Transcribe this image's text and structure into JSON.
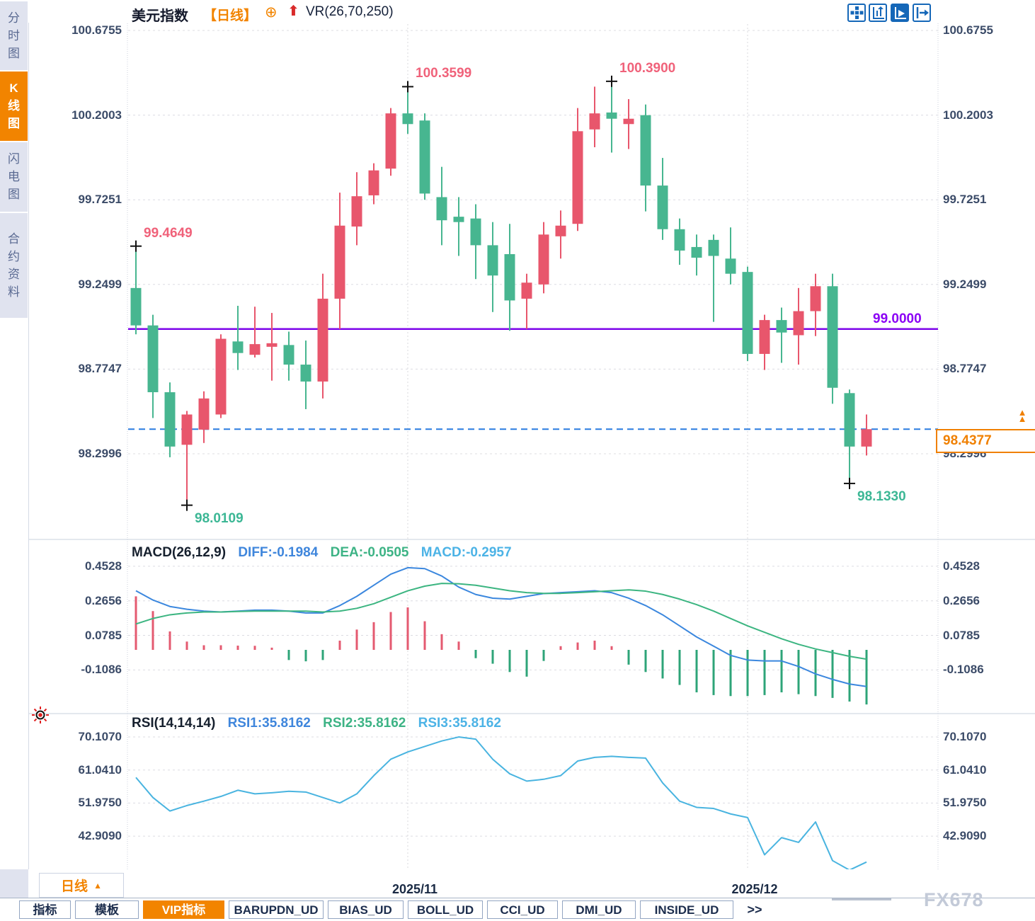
{
  "header": {
    "title": "美元指数",
    "period_tag": "【日线】",
    "plus_icon": "⊕",
    "up_arrow": "⬆",
    "overlay_indicator": "VR(26,70,250)",
    "accent_orange": "#f28400",
    "toolbar_icons": [
      "crosshair-pan-icon",
      "fit-axis-icon",
      "auto-scroll-icon",
      "exit-right-icon"
    ]
  },
  "sidebar": {
    "tabs": [
      {
        "label": "分时图",
        "active": false
      },
      {
        "label": "K线图",
        "active": true
      },
      {
        "label": "闪电图",
        "active": false
      },
      {
        "label": "合约资料",
        "active": false
      }
    ]
  },
  "chart_data": {
    "type": "candlestick",
    "title": "美元指数",
    "period": "日线",
    "up_color": "#e8566c",
    "down_color": "#47b690",
    "y_axis": {
      "main_ticks": [
        "100.6755",
        "100.2003",
        "99.7251",
        "99.2499",
        "98.7747",
        "98.2996"
      ],
      "main_range": [
        97.88,
        100.73
      ]
    },
    "x_axis": {
      "month_markers": [
        {
          "label": "2025/11",
          "index": 16
        },
        {
          "label": "2025/12",
          "index": 36
        }
      ]
    },
    "candles": [
      [
        99.23,
        99.4649,
        98.97,
        99.02
      ],
      [
        99.02,
        99.08,
        98.5,
        98.645
      ],
      [
        98.645,
        98.7,
        98.28,
        98.34
      ],
      [
        98.35,
        98.54,
        98.0109,
        98.52
      ],
      [
        98.435,
        98.65,
        98.36,
        98.61
      ],
      [
        98.52,
        98.97,
        98.5,
        98.945
      ],
      [
        98.93,
        99.13,
        98.77,
        98.865
      ],
      [
        98.855,
        99.125,
        98.84,
        98.915
      ],
      [
        98.9,
        99.09,
        98.71,
        98.92
      ],
      [
        98.91,
        98.985,
        98.71,
        98.8
      ],
      [
        98.8,
        98.935,
        98.55,
        98.705
      ],
      [
        98.705,
        99.31,
        98.61,
        99.17
      ],
      [
        99.17,
        99.765,
        99.0,
        99.58
      ],
      [
        99.575,
        99.88,
        99.47,
        99.745
      ],
      [
        99.75,
        99.93,
        99.7,
        99.89
      ],
      [
        99.9,
        100.24,
        99.86,
        100.21
      ],
      [
        100.21,
        100.3599,
        100.095,
        100.15
      ],
      [
        100.17,
        100.21,
        99.725,
        99.76
      ],
      [
        99.74,
        99.91,
        99.47,
        99.61
      ],
      [
        99.63,
        99.74,
        99.41,
        99.6
      ],
      [
        99.62,
        99.7,
        99.28,
        99.47
      ],
      [
        99.47,
        99.6,
        99.095,
        99.3
      ],
      [
        99.42,
        99.59,
        98.99,
        99.16
      ],
      [
        99.17,
        99.31,
        99.0,
        99.26
      ],
      [
        99.25,
        99.6,
        99.2,
        99.53
      ],
      [
        99.52,
        99.665,
        99.395,
        99.58
      ],
      [
        99.59,
        100.24,
        99.55,
        100.11
      ],
      [
        100.12,
        100.36,
        100.02,
        100.21
      ],
      [
        100.215,
        100.39,
        99.99,
        100.18
      ],
      [
        100.15,
        100.29,
        100.01,
        100.18
      ],
      [
        100.2,
        100.26,
        99.66,
        99.805
      ],
      [
        99.805,
        99.96,
        99.5,
        99.56
      ],
      [
        99.56,
        99.62,
        99.36,
        99.44
      ],
      [
        99.46,
        99.53,
        99.3,
        99.4
      ],
      [
        99.5,
        99.53,
        99.04,
        99.41
      ],
      [
        99.395,
        99.57,
        99.25,
        99.31
      ],
      [
        99.32,
        99.35,
        98.82,
        98.86
      ],
      [
        98.86,
        99.08,
        98.77,
        99.05
      ],
      [
        99.05,
        99.12,
        98.81,
        98.98
      ],
      [
        98.965,
        99.23,
        98.8,
        99.1
      ],
      [
        99.1,
        99.31,
        98.96,
        99.24
      ],
      [
        99.24,
        99.31,
        98.58,
        98.67
      ],
      [
        98.64,
        98.66,
        98.133,
        98.34
      ],
      [
        98.34,
        98.52,
        98.29,
        98.4377
      ]
    ],
    "reference_lines": [
      {
        "value": 99.0,
        "label": "99.0000",
        "style": "solid",
        "color": "#7d05ea"
      },
      {
        "value": 98.4377,
        "label": "98.4377",
        "style": "dashed",
        "color": "#2a7ce0"
      }
    ],
    "annotations": [
      {
        "text": "99.4649",
        "index": 0,
        "kind": "high",
        "color": "#f0627a"
      },
      {
        "text": "100.3599",
        "index": 16,
        "kind": "high",
        "color": "#f0627a"
      },
      {
        "text": "100.3900",
        "index": 28,
        "kind": "high",
        "color": "#f0627a"
      },
      {
        "text": "98.0109",
        "index": 3,
        "kind": "low",
        "color": "#3cb795"
      },
      {
        "text": "98.1330",
        "index": 42,
        "kind": "low",
        "color": "#3cb795"
      }
    ],
    "macd": {
      "ticks": [
        "0.4528",
        "0.2656",
        "0.0785",
        "-0.1086"
      ],
      "diff": [
        0.32,
        0.27,
        0.235,
        0.22,
        0.21,
        0.205,
        0.21,
        0.215,
        0.215,
        0.21,
        0.2,
        0.2,
        0.24,
        0.29,
        0.35,
        0.41,
        0.445,
        0.44,
        0.4,
        0.34,
        0.3,
        0.28,
        0.275,
        0.29,
        0.305,
        0.31,
        0.315,
        0.32,
        0.31,
        0.28,
        0.24,
        0.19,
        0.13,
        0.07,
        0.02,
        -0.03,
        -0.055,
        -0.06,
        -0.06,
        -0.09,
        -0.13,
        -0.16,
        -0.185,
        -0.1984
      ],
      "dea": [
        0.14,
        0.17,
        0.19,
        0.2,
        0.205,
        0.205,
        0.208,
        0.21,
        0.21,
        0.21,
        0.21,
        0.205,
        0.21,
        0.225,
        0.25,
        0.285,
        0.32,
        0.345,
        0.36,
        0.358,
        0.35,
        0.335,
        0.32,
        0.31,
        0.306,
        0.306,
        0.31,
        0.315,
        0.32,
        0.325,
        0.318,
        0.3,
        0.275,
        0.245,
        0.21,
        0.17,
        0.13,
        0.095,
        0.06,
        0.03,
        0.005,
        -0.015,
        -0.035,
        -0.0505
      ],
      "hist": [
        0.29,
        0.21,
        0.1,
        0.045,
        0.025,
        0.025,
        0.023,
        0.022,
        0.012,
        -0.055,
        -0.062,
        -0.055,
        0.05,
        0.11,
        0.15,
        0.205,
        0.23,
        0.155,
        0.085,
        0.045,
        -0.045,
        -0.075,
        -0.12,
        -0.145,
        -0.06,
        0.02,
        0.04,
        0.05,
        0.02,
        -0.08,
        -0.12,
        -0.155,
        -0.19,
        -0.23,
        -0.245,
        -0.25,
        -0.25,
        -0.245,
        -0.23,
        -0.24,
        -0.25,
        -0.26,
        -0.28,
        -0.2957
      ]
    },
    "rsi": {
      "ticks": [
        "70.1070",
        "61.0410",
        "51.9750",
        "42.9090"
      ],
      "values": [
        59.0,
        53.5,
        49.8,
        51.3,
        52.5,
        53.8,
        55.5,
        54.5,
        54.8,
        55.2,
        55.0,
        53.5,
        52.0,
        54.5,
        59.5,
        64.0,
        66.0,
        67.5,
        69.0,
        70.1,
        69.5,
        64.0,
        60.0,
        58.0,
        58.5,
        59.5,
        63.5,
        64.5,
        64.8,
        64.5,
        64.3,
        57.5,
        52.5,
        50.8,
        50.5,
        49.0,
        48.0,
        37.8,
        42.5,
        41.2,
        46.8,
        36.2,
        33.6,
        35.8162
      ]
    }
  },
  "macd_panel": {
    "title": "MACD(26,12,9)",
    "diff_label": "DIFF:-0.1984",
    "dea_label": "DEA:-0.0505",
    "macd_label": "MACD:-0.2957"
  },
  "rsi_panel": {
    "title": "RSI(14,14,14)",
    "rsi1_label": "RSI1:35.8162",
    "rsi2_label": "RSI2:35.8162",
    "rsi3_label": "RSI3:35.8162"
  },
  "reference": {
    "purple_label": "99.0000",
    "current_price": "98.4377",
    "price_arrows": "▲▲"
  },
  "bottom": {
    "period_button": "日线",
    "period_triangle": "▲",
    "tabs": [
      {
        "label": "指标",
        "active": false
      },
      {
        "label": "模板",
        "active": false
      },
      {
        "label": "VIP指标",
        "active": true
      },
      {
        "label": "BARUPDN_UD",
        "active": false
      },
      {
        "label": "BIAS_UD",
        "active": false
      },
      {
        "label": "BOLL_UD",
        "active": false
      },
      {
        "label": "CCI_UD",
        "active": false
      },
      {
        "label": "DMI_UD",
        "active": false
      },
      {
        "label": "INSIDE_UD",
        "active": false
      },
      {
        "label": ">>",
        "active": false,
        "kind": "more"
      }
    ],
    "watermark": "FX678"
  }
}
